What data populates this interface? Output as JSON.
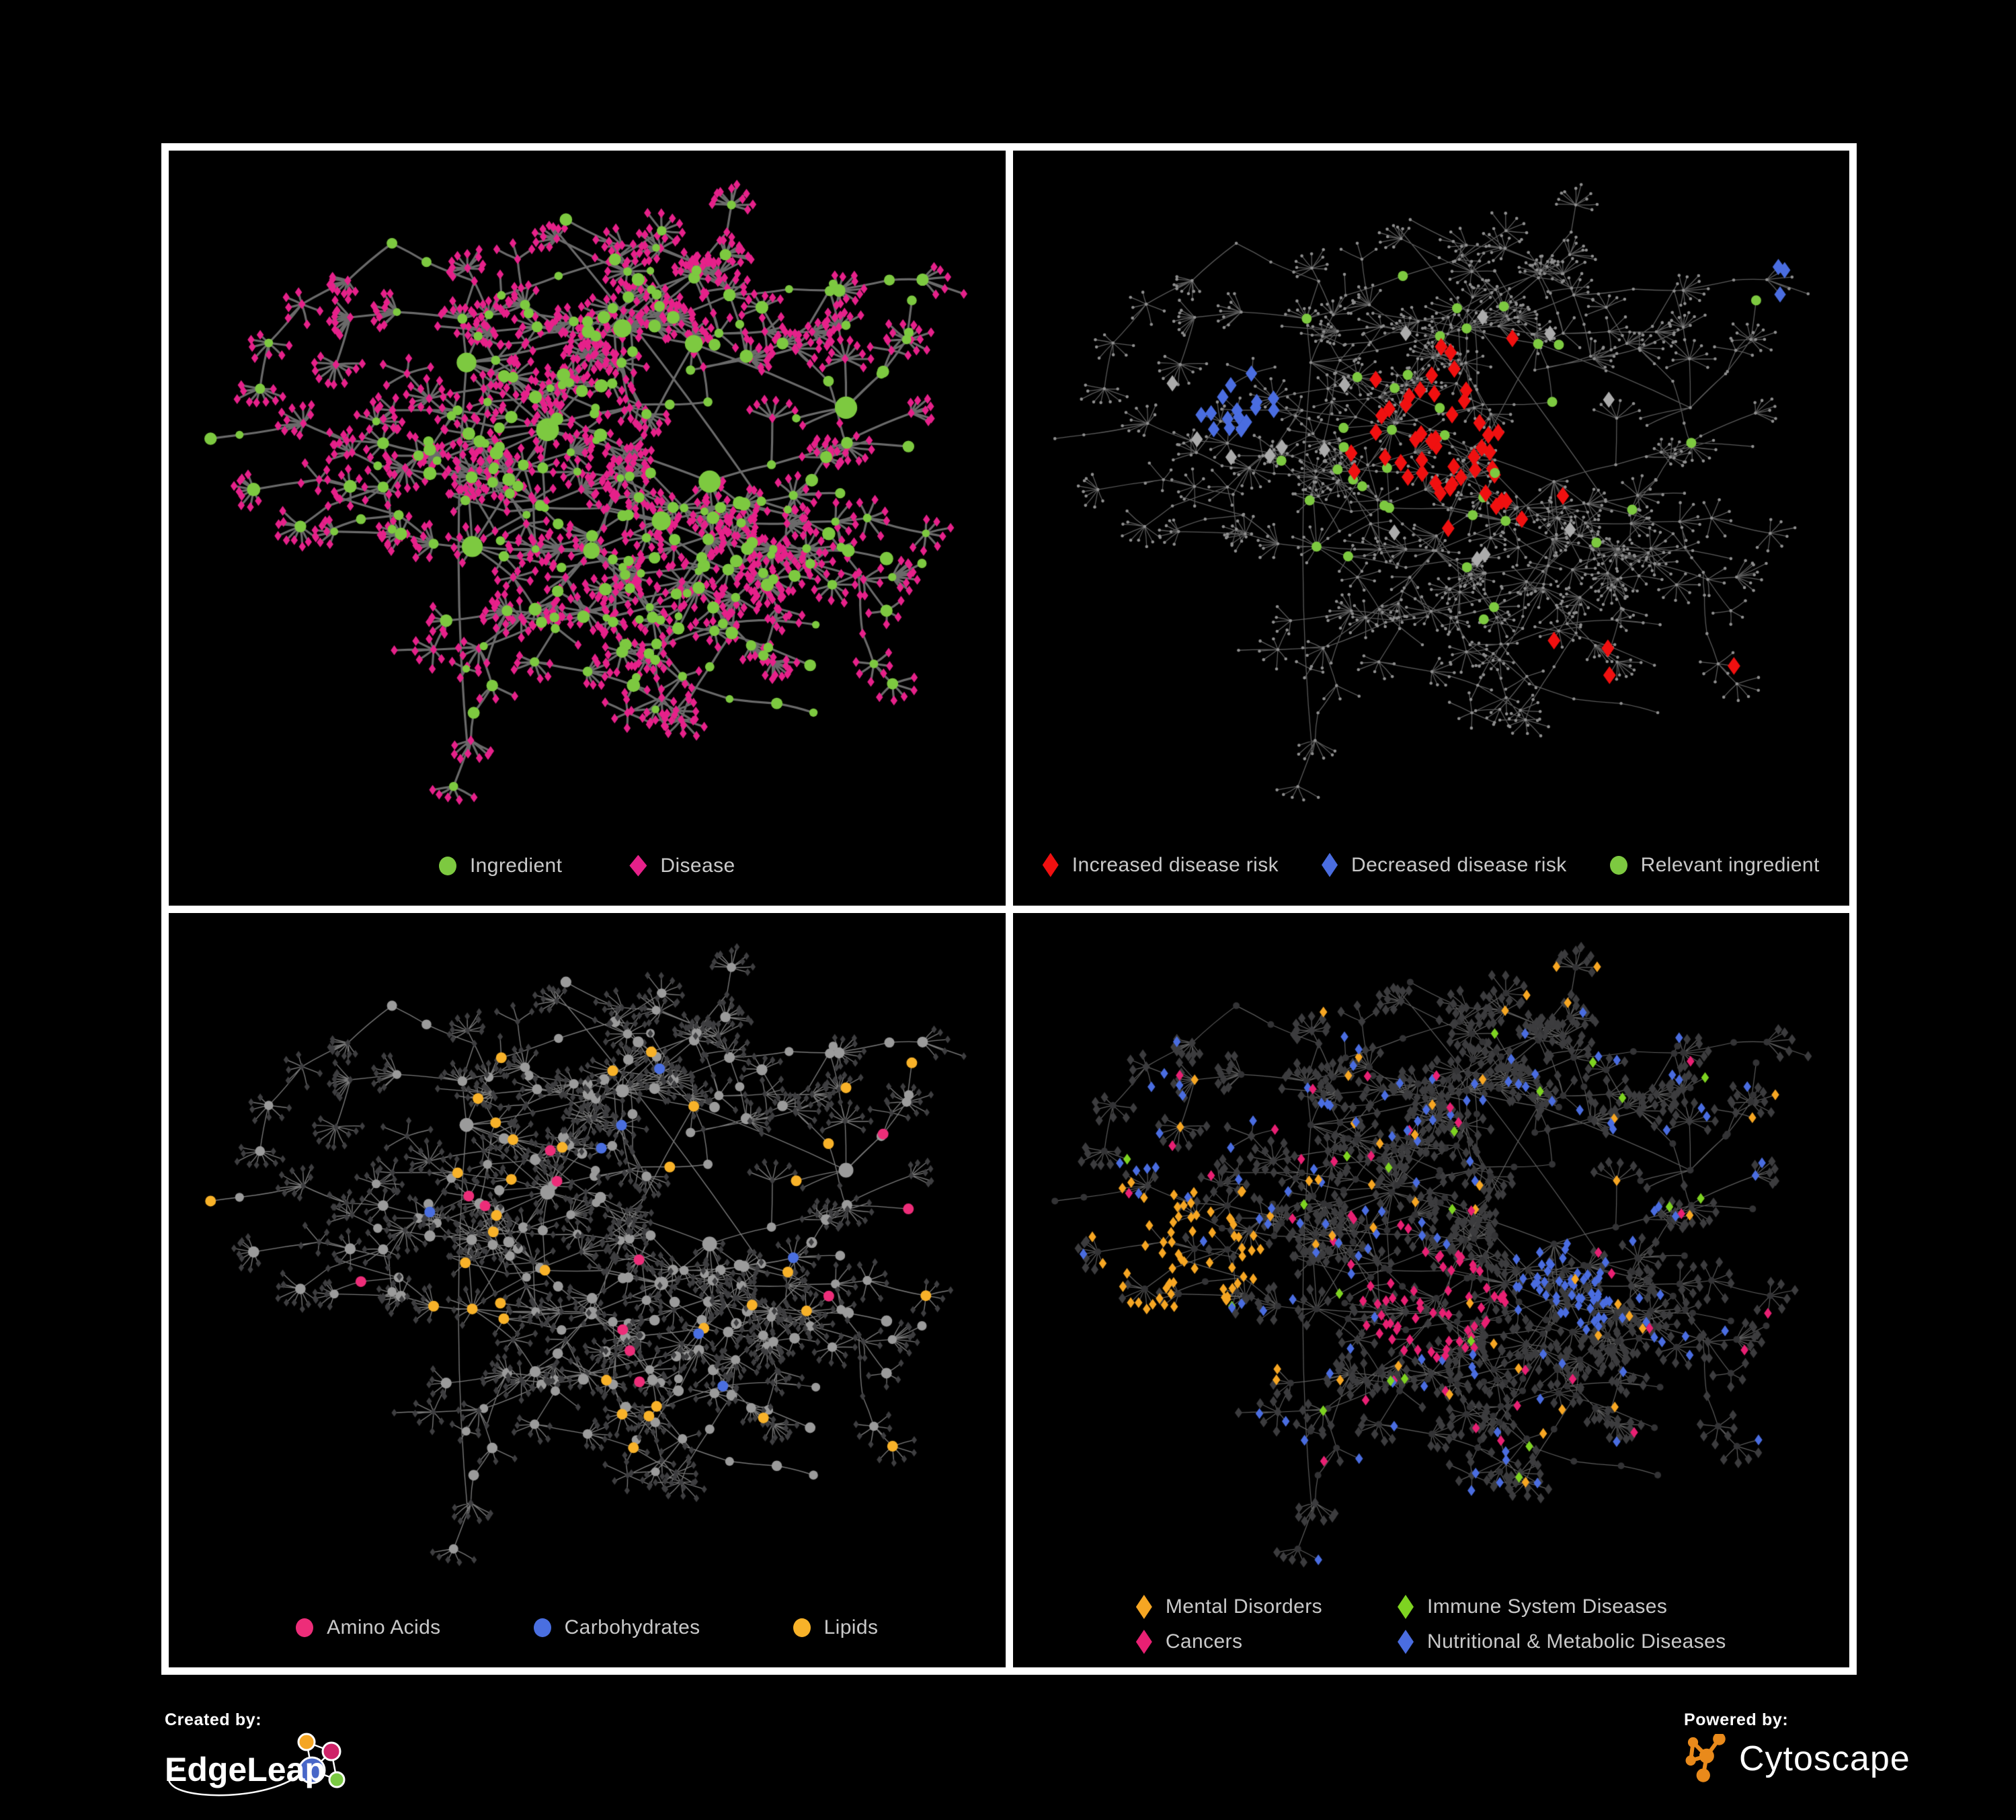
{
  "page": {
    "background": "#000000",
    "panel_border_color": "#ffffff",
    "legend_text_color": "#c9c9c9"
  },
  "panels": [
    {
      "id": "ingredient-disease",
      "view": "ingredient_disease",
      "legend_gap": "md",
      "legend": [
        {
          "label": "Ingredient",
          "shape": "circle",
          "color": "#7dc940"
        },
        {
          "label": "Disease",
          "shape": "diamond",
          "color": "#e6218a"
        }
      ]
    },
    {
      "id": "disease-risk",
      "view": "disease_risk",
      "legend_gap": "sm",
      "legend": [
        {
          "label": "Increased disease risk",
          "shape": "diamond",
          "color": "#f01010"
        },
        {
          "label": "Decreased disease risk",
          "shape": "diamond",
          "color": "#4a6de0"
        },
        {
          "label": "Relevant ingredient",
          "shape": "circle",
          "color": "#7dc940"
        }
      ]
    },
    {
      "id": "nutrient-classes",
      "view": "nutrients",
      "legend_gap": "lg",
      "legend": [
        {
          "label": "Amino Acids",
          "shape": "circle",
          "color": "#ed2d79"
        },
        {
          "label": "Carbohydrates",
          "shape": "circle",
          "color": "#4a6fe0"
        },
        {
          "label": "Lipids",
          "shape": "circle",
          "color": "#f8b229"
        }
      ]
    },
    {
      "id": "disease-categories",
      "view": "categories",
      "legend_columns": 2,
      "legend": [
        {
          "label": "Mental Disorders",
          "shape": "diamond",
          "color": "#f6a623"
        },
        {
          "label": "Immune System Diseases",
          "shape": "diamond",
          "color": "#7ed321"
        },
        {
          "label": "Cancers",
          "shape": "diamond",
          "color": "#e82073"
        },
        {
          "label": "Nutritional & Metabolic Diseases",
          "shape": "diamond",
          "color": "#4a6de0"
        }
      ]
    }
  ],
  "network": {
    "seed": 97,
    "hubs": 9,
    "burst_probability": 0.55,
    "max_extra_burst_leaves": 8,
    "extra_cross_edges": 16,
    "ingredient_shape": "circle",
    "disease_shape": "diamond",
    "views": {
      "ingredient_disease": {
        "edge_color": "#757575",
        "edge_width": 3.2,
        "edge_alpha": 0.9,
        "ingredient_color": "#7dc940",
        "disease_color": "#e6218a"
      },
      "disease_risk": {
        "edge_color": "#6a6a6a",
        "edge_width": 1.3,
        "edge_alpha": 0.85,
        "base_color": "#8f8f8f",
        "increased_color": "#f01010",
        "decreased_color": "#4a6de0",
        "neutral_color": "#ababab",
        "relevant_color": "#7dc940"
      },
      "nutrients": {
        "edge_color": "#979797",
        "edge_width": 1.4,
        "edge_alpha": 0.8,
        "disease_color": "#3e3e40",
        "ingredient_color": "#9b9b9b",
        "amino_color": "#ed2d79",
        "carb_color": "#4a6fe0",
        "lipid_color": "#f8b229"
      },
      "categories": {
        "edge_color": "#858585",
        "edge_width": 1.2,
        "edge_alpha": 0.7,
        "ingredient_color": "#333335",
        "disease_color": "#3c3c3e",
        "mental_color": "#f6a623",
        "cancer_color": "#e82073",
        "immune_color": "#7ed321",
        "metabolic_color": "#4a6de0"
      }
    }
  },
  "footer": {
    "created_by_label": "Created by:",
    "created_by_name": "EdgeLeap",
    "powered_by_label": "Powered by:",
    "powered_by_name": "Cytoscape",
    "edgeleap_colors": {
      "orange": "#f5a623",
      "magenta": "#ce2368",
      "blue": "#4867c8",
      "green": "#7ac943"
    },
    "cytoscape_orange": "#e98a1b"
  }
}
